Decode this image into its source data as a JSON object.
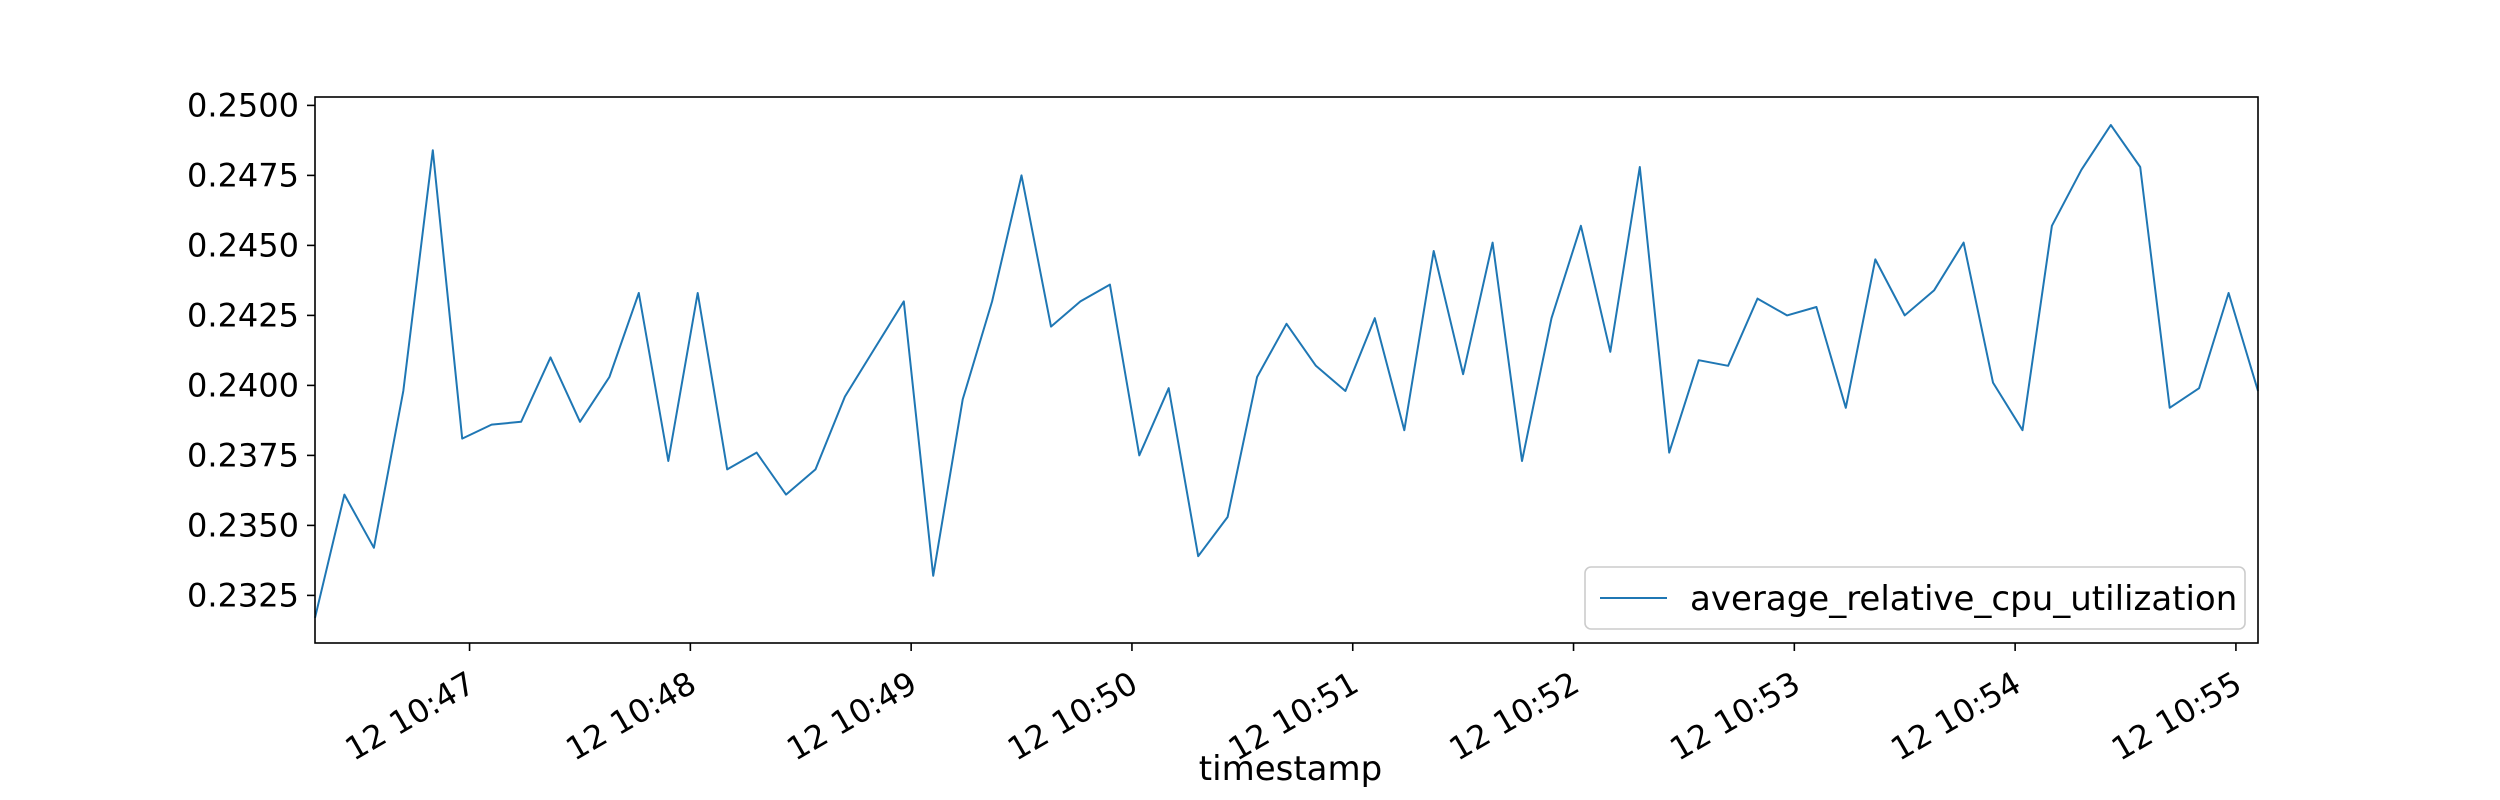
{
  "chart_data": {
    "type": "line",
    "title": "",
    "xlabel": "timestamp",
    "ylabel": "",
    "grid": false,
    "legend_position": "bottom-right",
    "x_start": "12 10:46:18",
    "x_end": "12 10:55:06",
    "x_interval_seconds": 8,
    "ylim": [
      0.2308,
      0.2503
    ],
    "x_ticks": [
      {
        "time": "12 10:47:00",
        "label": "12 10:47"
      },
      {
        "time": "12 10:48:00",
        "label": "12 10:48"
      },
      {
        "time": "12 10:49:00",
        "label": "12 10:49"
      },
      {
        "time": "12 10:50:00",
        "label": "12 10:50"
      },
      {
        "time": "12 10:51:00",
        "label": "12 10:51"
      },
      {
        "time": "12 10:52:00",
        "label": "12 10:52"
      },
      {
        "time": "12 10:53:00",
        "label": "12 10:53"
      },
      {
        "time": "12 10:54:00",
        "label": "12 10:54"
      },
      {
        "time": "12 10:55:00",
        "label": "12 10:55"
      }
    ],
    "y_ticks": [
      {
        "value": 0.2325,
        "label": "0.2325"
      },
      {
        "value": 0.235,
        "label": "0.2350"
      },
      {
        "value": 0.2375,
        "label": "0.2375"
      },
      {
        "value": 0.24,
        "label": "0.2400"
      },
      {
        "value": 0.2425,
        "label": "0.2425"
      },
      {
        "value": 0.245,
        "label": "0.2450"
      },
      {
        "value": 0.2475,
        "label": "0.2475"
      },
      {
        "value": 0.25,
        "label": "0.2500"
      }
    ],
    "series": [
      {
        "name": "average_relative_cpu_utilization",
        "color": "#1f77b4",
        "values": [
          0.2317,
          0.2361,
          0.2342,
          0.2398,
          0.2484,
          0.2381,
          0.2386,
          0.2387,
          0.241,
          0.2387,
          0.2403,
          0.2433,
          0.2373,
          0.2433,
          0.237,
          0.2376,
          0.2361,
          0.237,
          0.2396,
          0.2413,
          0.243,
          0.2332,
          0.2395,
          0.243,
          0.2475,
          0.2421,
          0.243,
          0.2436,
          0.2375,
          0.2399,
          0.2339,
          0.2353,
          0.2403,
          0.2422,
          0.2407,
          0.2398,
          0.2424,
          0.2384,
          0.2448,
          0.2404,
          0.2451,
          0.2373,
          0.2424,
          0.2457,
          0.2412,
          0.2478,
          0.2376,
          0.2409,
          0.2407,
          0.2431,
          0.2425,
          0.2428,
          0.2392,
          0.2445,
          0.2425,
          0.2434,
          0.2451,
          0.2401,
          0.2384,
          0.2457,
          0.2477,
          0.2493,
          0.2478,
          0.2392,
          0.2399,
          0.2433,
          0.2398
        ]
      }
    ]
  }
}
